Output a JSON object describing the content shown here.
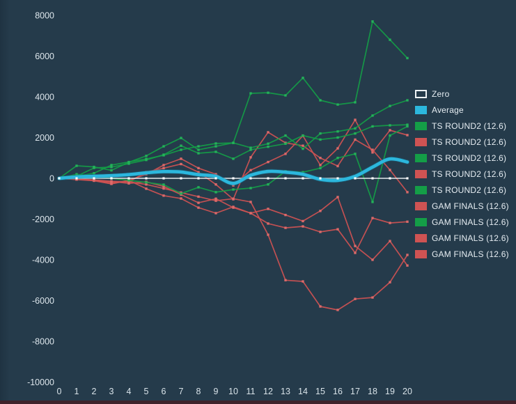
{
  "colors": {
    "background": "#253b4b",
    "text": "#dde6ec",
    "green": "#149e47",
    "green_marker": "#25b25b",
    "red": "#cf5353",
    "red_marker": "#de6c6c",
    "average": "#2cb7dd",
    "zero_line": "#eef3f6",
    "bottom_strip": "#3f222b"
  },
  "chart_data": {
    "type": "line",
    "title": "",
    "xlabel": "",
    "ylabel": "",
    "x": [
      0,
      1,
      2,
      3,
      4,
      5,
      6,
      7,
      8,
      9,
      10,
      11,
      12,
      13,
      14,
      15,
      16,
      17,
      18,
      19,
      20
    ],
    "x_tick_labels": [
      "0",
      "1",
      "2",
      "3",
      "4",
      "5",
      "6",
      "7",
      "8",
      "9",
      "10",
      "11",
      "12",
      "13",
      "14",
      "15",
      "16",
      "17",
      "18",
      "19",
      "20"
    ],
    "y_ticks": [
      8000,
      6000,
      4000,
      2000,
      0,
      -2000,
      -4000,
      -6000,
      -8000,
      -10000
    ],
    "y_tick_labels": [
      "8000",
      "6000",
      "4000",
      "2000",
      "0",
      "-2000",
      "-4000",
      "-6000",
      "-8000",
      "-10000"
    ],
    "ylim": [
      -10000,
      8600
    ],
    "grid": false,
    "legend_position": "right",
    "legend": [
      {
        "label": "Zero",
        "color_key": "zero"
      },
      {
        "label": "Average",
        "color_key": "average"
      },
      {
        "label": "TS ROUND2 (12.6)",
        "color_key": "green"
      },
      {
        "label": "TS ROUND2 (12.6)",
        "color_key": "red"
      },
      {
        "label": "TS ROUND2 (12.6)",
        "color_key": "green"
      },
      {
        "label": "TS ROUND2 (12.6)",
        "color_key": "red"
      },
      {
        "label": "TS ROUND2 (12.6)",
        "color_key": "green"
      },
      {
        "label": "GAM FINALS (12.6)",
        "color_key": "red"
      },
      {
        "label": "GAM FINALS (12.6)",
        "color_key": "green"
      },
      {
        "label": "GAM FINALS (12.6)",
        "color_key": "red"
      },
      {
        "label": "GAM FINALS (12.6)",
        "color_key": "red"
      }
    ],
    "series": [
      {
        "name": "TS ROUND2 (12.6)",
        "color_key": "green",
        "values": [
          0,
          100,
          250,
          650,
          800,
          950,
          1130,
          1400,
          1570,
          1710,
          1740,
          4170,
          4200,
          4070,
          4930,
          3830,
          3620,
          3730,
          7700,
          6800,
          5900
        ]
      },
      {
        "name": "TS ROUND2 (12.6)",
        "color_key": "red",
        "values": [
          0,
          -50,
          -100,
          -270,
          -100,
          200,
          650,
          960,
          500,
          200,
          -350,
          400,
          800,
          1200,
          2090,
          650,
          1470,
          2870,
          1270,
          2360,
          2120
        ]
      },
      {
        "name": "TS ROUND2 (12.6)",
        "color_key": "green",
        "values": [
          0,
          615,
          560,
          390,
          790,
          1100,
          1570,
          1980,
          1400,
          1570,
          1740,
          1500,
          1700,
          2100,
          1450,
          2200,
          2300,
          2450,
          3080,
          3550,
          3830
        ]
      },
      {
        "name": "TS ROUND2 (12.6)",
        "color_key": "red",
        "values": [
          0,
          0,
          -100,
          -200,
          -170,
          300,
          500,
          700,
          300,
          -300,
          -1030,
          1030,
          2260,
          1740,
          1600,
          1000,
          600,
          1900,
          1400,
          410,
          -680
        ]
      },
      {
        "name": "TS ROUND2 (12.6)",
        "color_key": "green",
        "values": [
          0,
          100,
          510,
          550,
          720,
          900,
          1160,
          1600,
          1230,
          1300,
          960,
          1400,
          1550,
          1700,
          2100,
          1900,
          2000,
          2200,
          2550,
          2600,
          2630
        ]
      },
      {
        "name": "GAM FINALS (12.6)",
        "color_key": "red",
        "values": [
          0,
          -60,
          -120,
          -270,
          -100,
          -510,
          -850,
          -990,
          -1440,
          -1710,
          -1400,
          -1710,
          -2220,
          -2430,
          -2360,
          -2630,
          -2500,
          -3660,
          -1950,
          -2190,
          -2130
        ]
      },
      {
        "name": "GAM FINALS (12.6)",
        "color_key": "green",
        "values": [
          0,
          200,
          100,
          0,
          -100,
          -200,
          -310,
          -750,
          -440,
          -680,
          -550,
          -480,
          -300,
          350,
          300,
          500,
          1000,
          1200,
          -1160,
          2100,
          2550
        ]
      },
      {
        "name": "GAM FINALS (12.6)",
        "color_key": "red",
        "values": [
          0,
          -50,
          -100,
          -150,
          -170,
          -300,
          -500,
          -700,
          -900,
          -1100,
          -1000,
          -1160,
          -2770,
          -5000,
          -5060,
          -6290,
          -6460,
          -5920,
          -5850,
          -5100,
          -3760
        ]
      },
      {
        "name": "GAM FINALS (12.6)",
        "color_key": "red",
        "values": [
          0,
          -30,
          -80,
          -150,
          -250,
          -170,
          -400,
          -800,
          -1200,
          -1000,
          -1440,
          -1710,
          -1500,
          -1800,
          -2100,
          -1600,
          -920,
          -3320,
          -4000,
          -3080,
          -4280
        ]
      }
    ],
    "zero_series": {
      "name": "Zero",
      "values": [
        0,
        0,
        0,
        0,
        0,
        0,
        0,
        0,
        0,
        0,
        0,
        0,
        0,
        0,
        0,
        0,
        0,
        0,
        0,
        0,
        0
      ]
    },
    "average_series": {
      "name": "Average",
      "values": [
        0,
        70,
        100,
        130,
        180,
        270,
        330,
        310,
        180,
        95,
        -250,
        150,
        340,
        300,
        200,
        -50,
        -100,
        100,
        550,
        950,
        800
      ]
    }
  }
}
